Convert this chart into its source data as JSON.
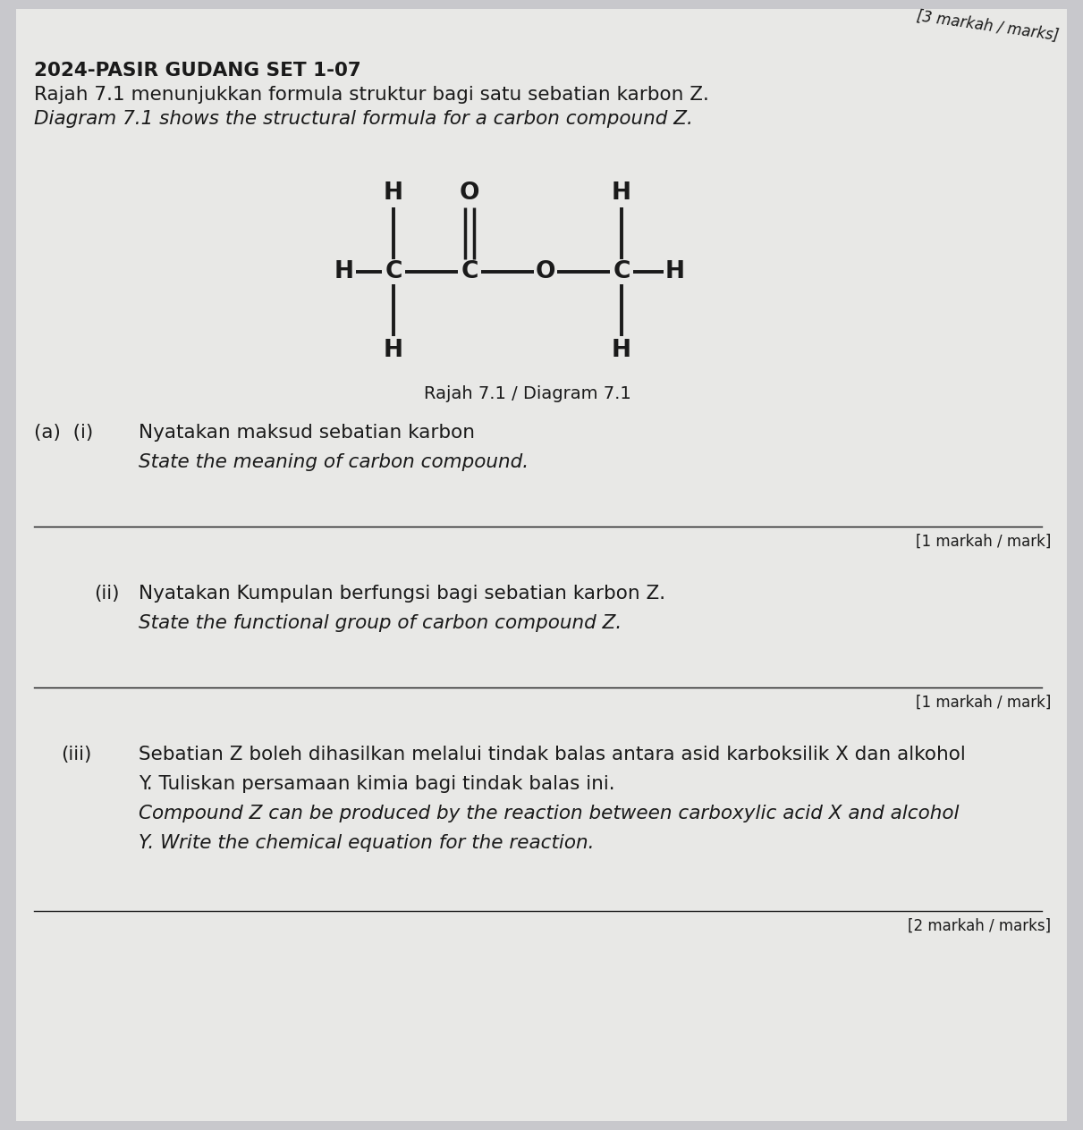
{
  "bg_color": "#c8c8cc",
  "paper_color": "#e8e8e6",
  "text_color": "#1a1a1a",
  "top_right_text": "[3 markah / marks]",
  "header_bold": "2024-PASIR GUDANG SET 1-07",
  "header_line1": "Rajah 7.1 menunjukkan formula struktur bagi satu sebatian karbon Z.",
  "header_line2_italic": "Diagram 7.1 shows the structural formula for a carbon compound Z.",
  "diagram_caption": "Rajah 7.1 / Diagram 7.1",
  "qa_i_line1": "Nyatakan maksud sebatian karbon",
  "qa_i_line2_italic": "State the meaning of carbon compound.",
  "mark_i": "[1 markah / mark]",
  "qa_ii_label": "(ii)",
  "qa_ii_line1": "Nyatakan Kumpulan berfungsi bagi sebatian karbon Z.",
  "qa_ii_line2_italic": "State the functional group of carbon compound Z.",
  "mark_ii": "[1 markah / mark]",
  "qa_iii_label": "(iii)",
  "qa_iii_line1": "Sebatian Z boleh dihasilkan melalui tindak balas antara asid karboksilik X dan alkohol",
  "qa_iii_line2": "Y. Tuliskan persamaan kimia bagi tindak balas ini.",
  "qa_iii_line3_italic": "Compound Z can be produced by the reaction between carboxylic acid X and alcohol",
  "qa_iii_line4_italic": "Y. Write the chemical equation for the reaction.",
  "mark_iii": "[2 markah / marks]"
}
